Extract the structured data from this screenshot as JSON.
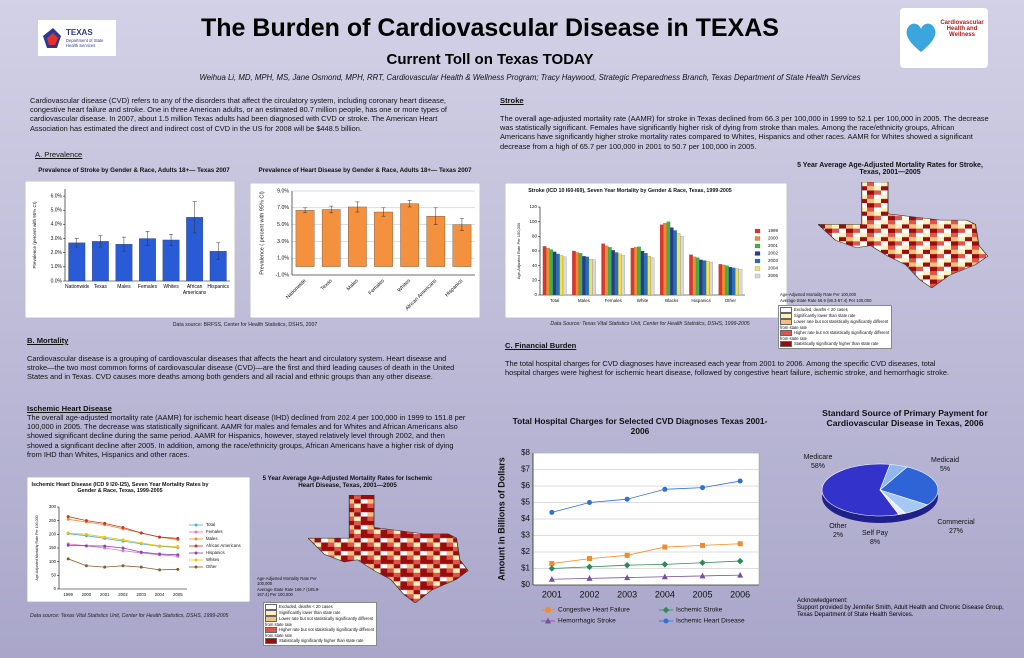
{
  "header": {
    "title": "The Burden of Cardiovascular Disease in TEXAS",
    "subtitle": "Current Toll on Texas TODAY",
    "authors": "Weihua Li, MD, MPH, MS, Jane Osmond, MPH, RRT, Cardiovascular Health & Wellness Program; Tracy Haywood, Strategic Preparedness Branch, Texas Department of State Health Services",
    "logo_left": {
      "name": "TEXAS",
      "sub": "Department of State Health Services"
    },
    "logo_right": "Cardiovascular Health and Wellness"
  },
  "intro": "Cardiovascular disease (CVD) refers to any of the disorders that affect the circulatory system, including coronary heart disease, congestive heart failure and stroke. One in three American adults, or an estimated 80.7 million people, has one or more types of cardiovascular disease. In 2007, about 1.5 million Texas adults had been diagnosed with CVD or stroke. The American Heart Association has estimated the direct and indirect cost of CVD in the US for 2008 will be $448.5 billion.",
  "prevalence": {
    "heading": "A. Prevalence",
    "source": "Data source: BRFSS, Center for Health Statistics, DSHS, 2007"
  },
  "stroke": {
    "heading": "Stroke",
    "text": "The overall age-adjusted mortality rate (AAMR) for stroke in Texas declined from 66.3 per 100,000 in 1999 to 52.1 per 100,000 in 2005. The decrease was statistically significant. Females have significantly higher risk of dying from stroke than males. Among the race/ethnicity groups, African Americans have significantly higher stroke mortality rates compared to Whites, Hispanics and other races. AAMR for Whites showed a significant decrease from a high of 65.7 per 100,000 in 2001 to 50.7 per 100,000 in 2005.",
    "source": "Data Source: Texas Vital Statistics Unit, Center for Health Statistics, DSHS, 1999-2005"
  },
  "mortality": {
    "heading": "B. Mortality",
    "text": "Cardiovascular disease is a grouping of cardiovascular diseases that affects the heart and circulatory system. Heart disease and stroke—the two most common forms of cardiovascular disease (CVD)—are the first and third leading causes of death in the United States and in Texas. CVD causes more deaths among both genders and all racial and ethnic groups than any other disease."
  },
  "ihd": {
    "heading": "Ischemic Heart Disease",
    "text": "The overall age-adjusted mortality rate (AAMR) for ischemic heart disease (IHD) declined from 202.4 per 100,000 in 1999 to 151.8 per 100,000 in 2005. The decrease was statistically significant. AAMR for males and females and for Whites and African Americans also showed significant decline during the same period. AAMR for Hispanics, however, stayed relatively level through 2002, and then showed a significant decline after 2005. In addition, among the race/ethnicity groups, African Americans have a higher risk of dying from IHD than Whites, Hispanics and other races.",
    "source": "Data source: Texas Vital Statistics Unit, Center for Health Statistics, DSHS, 1999-2005"
  },
  "financial": {
    "heading": "C. Financial Burden",
    "text": "The total hospital charges for CVD diagnoses have increased each year from 2001 to 2006. Among the specific CVD diseases, total hospital charges were highest for ischemic heart disease, followed by congestive heart failure, ischemic stroke, and hemorrhagic stroke."
  },
  "acknowledgement": {
    "heading": "Acknowledgement:",
    "text": "Support provided by Jennifer Smith, Adult Health and Chronic Disease Group, Texas Department of State Health Services."
  },
  "maps": [
    {
      "title": "5 Year Average Age-Adjusted Mortality Rates for Stroke, Texas, 2001—2005",
      "legend_title": "Age-Adjusted Mortality Rate Per 100,000",
      "state_rate": "Average State Rate 56.9 (56.3-57.4) Per 100,000",
      "legend_items": [
        "Excluded, deaths < 20 cases",
        "Significantly lower than state rate",
        "Lower rate but not statistically significantly different from state rate",
        "Higher rate but not statistically significantly different from state rate",
        "Statistically significantly higher than state rate"
      ],
      "legend_colors": [
        "#ffffff",
        "#fdf1b8",
        "#f7c07a",
        "#e0554a",
        "#9b0d0d"
      ]
    },
    {
      "title": "5 Year Average Age-Adjusted Mortality Rates for Ischemic Heart Disease, Texas, 2001—2005",
      "legend_title": "Age-Adjusted Mortality Rate Per 100,000",
      "state_rate": "Average State Rate 166.7 (165.9-167.4) Per 100,000",
      "legend_items": [
        "Excluded, deaths < 20 cases",
        "Significantly lower than state rate",
        "Lower rate but not statistically significantly different from state rate",
        "Higher rate but not statistically significantly different from state rate",
        "Statistically significantly higher than state rate"
      ],
      "legend_colors": [
        "#ffffff",
        "#fdf1b8",
        "#f7c07a",
        "#e0554a",
        "#9b0d0d"
      ]
    }
  ],
  "chart_data": [
    {
      "type": "bar",
      "title": "Prevalence of Stroke by Gender & Race, Adults 18+— Texas 2007",
      "ylabel": "Prevalence (percent with 95% CI)",
      "categories": [
        "Nationwide",
        "Texas",
        "Males",
        "Females",
        "Whites",
        "African Americans",
        "Hispanics"
      ],
      "values": [
        2.7,
        2.8,
        2.6,
        3.0,
        2.9,
        4.5,
        2.1
      ],
      "errors": [
        0.3,
        0.4,
        0.5,
        0.5,
        0.4,
        1.1,
        0.6
      ],
      "color": "#2a5bd7",
      "ylim": [
        0,
        6.5
      ],
      "yticks": [
        {
          "value": 0,
          "label": "0.0%"
        },
        {
          "value": 1,
          "label": "1.0%"
        },
        {
          "value": 2,
          "label": "2.0%"
        },
        {
          "value": 3,
          "label": "3.0%"
        },
        {
          "value": 4,
          "label": "4.0%"
        },
        {
          "value": 5,
          "label": "5.0%"
        },
        {
          "value": 6,
          "label": "6.0%"
        }
      ],
      "grid": false
    },
    {
      "type": "bar",
      "title": "Prevalence of Heart Disease by Gender & Race, Adults 18+— Texas 2007",
      "ylabel": "Prevalence ( percent with 95% CI)",
      "categories": [
        "Nationwide",
        "Texas",
        "Males",
        "Females",
        "Whites",
        "African Americans",
        "Hispanics"
      ],
      "values": [
        6.7,
        6.8,
        7.1,
        6.5,
        7.5,
        6.0,
        5.0
      ],
      "errors": [
        0.3,
        0.4,
        0.6,
        0.5,
        0.4,
        1.0,
        0.7
      ],
      "color": "#f4913f",
      "ylim": [
        -1,
        9
      ],
      "yticks": [
        {
          "value": -1,
          "label": "-1.0%"
        },
        {
          "value": 1,
          "label": "1.0%"
        },
        {
          "value": 3,
          "label": "3.0%"
        },
        {
          "value": 5,
          "label": "5.0%"
        },
        {
          "value": 7,
          "label": "7.0%"
        },
        {
          "value": 9,
          "label": "9.0%"
        }
      ],
      "grid": true
    },
    {
      "type": "bar",
      "title": "Stroke (ICD 10 I60-I69), Seven Year Mortality by Gender & Race, Texas, 1999-2005",
      "ylabel": "Age-Adjusted Rate Per 100,000",
      "categories": [
        "Total",
        "Males",
        "Females",
        "White",
        "Blacks",
        "Hispanics",
        "Other"
      ],
      "series": [
        {
          "name": "1999",
          "color": "#e8302a",
          "values": [
            66.3,
            60,
            70,
            64,
            96,
            55,
            42
          ]
        },
        {
          "name": "2000",
          "color": "#f28c28",
          "values": [
            64,
            58,
            67,
            65,
            98,
            52,
            41
          ]
        },
        {
          "name": "2001",
          "color": "#39b54a",
          "values": [
            62,
            57,
            65,
            65.7,
            100,
            51,
            40
          ]
        },
        {
          "name": "2002",
          "color": "#2b3990",
          "values": [
            59,
            53,
            61,
            60,
            92,
            48,
            38
          ]
        },
        {
          "name": "2003",
          "color": "#1c75bc",
          "values": [
            56,
            52,
            58,
            57,
            88,
            47,
            37
          ]
        },
        {
          "name": "2004",
          "color": "#f7e04b",
          "values": [
            54,
            49,
            56,
            53,
            84,
            46,
            36
          ]
        },
        {
          "name": "2005",
          "color": "#d9d9d9",
          "values": [
            52.1,
            48,
            54,
            50.7,
            80,
            45,
            35
          ]
        }
      ],
      "ylim": [
        0,
        120
      ],
      "yticks": [
        0,
        20,
        40,
        60,
        80,
        100,
        120
      ],
      "grid": false
    },
    {
      "type": "pie",
      "title": "Standard Source of Primary Payment for Cardiovascular Disease in Texas, 2006",
      "categories": [
        "Medicare",
        "Medicaid",
        "Commercial",
        "Self Pay",
        "Other"
      ],
      "values": [
        58,
        5,
        27,
        8,
        2
      ],
      "value_labels": [
        "58%",
        "5%",
        "27%",
        "8%",
        "2%"
      ],
      "colors": [
        "#3333cc",
        "#8fb8f0",
        "#2e64d6",
        "#a6c8f5",
        "#e8eefc"
      ]
    },
    {
      "type": "line",
      "title": "Ischemic Heart Disease (ICD 9 I20-I25), Seven Year Mortality Rates  by Gender & Race, Texas, 1999-2005",
      "ylabel": "Age-Adjusted Mortality Rate Per 100,000",
      "categories": [
        "1999",
        "2000",
        "2001",
        "2002",
        "2003",
        "2004",
        "2005"
      ],
      "series": [
        {
          "name": "Total",
          "color": "#4fb3bf",
          "marker": "circle",
          "values": [
            202.4,
            195,
            185,
            175,
            165,
            156,
            151.8
          ]
        },
        {
          "name": "Females",
          "color": "#e377c2",
          "marker": "circle",
          "values": [
            165,
            158,
            150,
            140,
            132,
            125,
            120
          ]
        },
        {
          "name": "Males",
          "color": "#f28c28",
          "marker": "circle",
          "values": [
            255,
            245,
            235,
            220,
            205,
            190,
            180
          ]
        },
        {
          "name": "African Americans",
          "color": "#c0392b",
          "marker": "circle",
          "values": [
            265,
            250,
            240,
            225,
            205,
            190,
            185
          ]
        },
        {
          "name": "Hispanics",
          "color": "#8e44ad",
          "marker": "circle",
          "values": [
            160,
            158,
            157,
            150,
            135,
            128,
            125
          ]
        },
        {
          "name": "Whites",
          "color": "#f1c40f",
          "marker": "circle",
          "values": [
            205,
            200,
            190,
            180,
            168,
            158,
            155
          ]
        },
        {
          "name": "Other",
          "color": "#8b5a2b",
          "marker": "circle",
          "values": [
            110,
            85,
            80,
            85,
            80,
            70,
            72
          ]
        }
      ],
      "ylim": [
        0,
        300
      ],
      "yticks": [
        0,
        50,
        100,
        150,
        200,
        250,
        300
      ],
      "grid": false
    },
    {
      "type": "line",
      "title": "Total Hospital Charges for Selected CVD Diagnoses Texas 2001-2006",
      "ylabel": "Amount in Billions of Dollars",
      "categories": [
        "2001",
        "2002",
        "2003",
        "2004",
        "2005",
        "2006"
      ],
      "series": [
        {
          "name": "Congestive Heart Failure",
          "color": "#f28c28",
          "marker": "square",
          "values": [
            1.3,
            1.6,
            1.8,
            2.3,
            2.4,
            2.5
          ]
        },
        {
          "name": "Ischemic Stroke",
          "color": "#2e8b57",
          "marker": "diamond",
          "values": [
            1.0,
            1.1,
            1.2,
            1.25,
            1.35,
            1.45
          ]
        },
        {
          "name": "Hemorrhagic Stroke",
          "color": "#7a4f9a",
          "marker": "triangle",
          "values": [
            0.35,
            0.4,
            0.45,
            0.5,
            0.55,
            0.6
          ]
        },
        {
          "name": "Ischemic Heart Disease",
          "color": "#2e6fd8",
          "marker": "circle",
          "values": [
            4.4,
            5.0,
            5.2,
            5.8,
            5.9,
            6.3
          ]
        }
      ],
      "ylim": [
        0,
        8
      ],
      "yticks": [
        {
          "value": 0,
          "label": "$0"
        },
        {
          "value": 1,
          "label": "$1"
        },
        {
          "value": 2,
          "label": "$2"
        },
        {
          "value": 3,
          "label": "$3"
        },
        {
          "value": 4,
          "label": "$4"
        },
        {
          "value": 5,
          "label": "$5"
        },
        {
          "value": 6,
          "label": "$6"
        },
        {
          "value": 7,
          "label": "$7"
        },
        {
          "value": 8,
          "label": "$8"
        }
      ],
      "grid": true
    }
  ]
}
